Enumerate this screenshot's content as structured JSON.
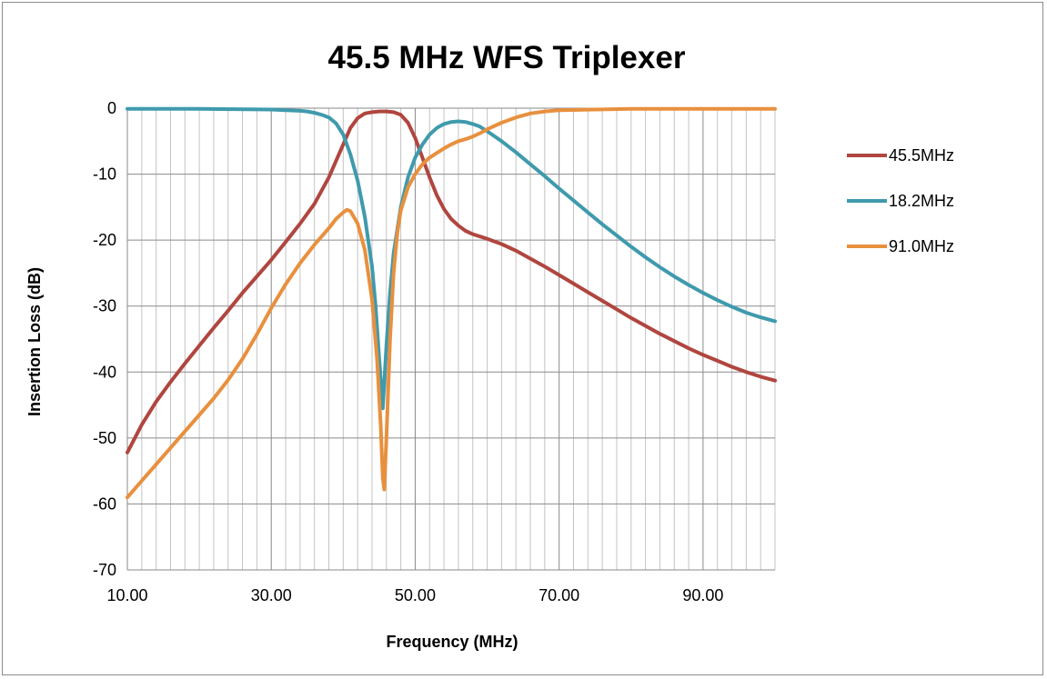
{
  "chart_data": {
    "type": "line",
    "title": "45.5 MHz WFS Triplexer",
    "xlabel": "Frequency (MHz)",
    "ylabel": "Insertion Loss (dB)",
    "xlim": [
      10,
      100
    ],
    "ylim": [
      -70,
      0
    ],
    "x_ticks": [
      "10.00",
      "30.00",
      "50.00",
      "70.00",
      "90.00"
    ],
    "x_tick_values": [
      10,
      30,
      50,
      70,
      90
    ],
    "y_ticks": [
      "0",
      "-10",
      "-20",
      "-30",
      "-40",
      "-50",
      "-60",
      "-70"
    ],
    "y_tick_values": [
      0,
      -10,
      -20,
      -30,
      -40,
      -50,
      -60,
      -70
    ],
    "x_minor_grid_step": 2,
    "grid": true,
    "legend_position": "right",
    "series": [
      {
        "name": "45.5MHz",
        "color": "#b0463f",
        "points": [
          [
            10,
            -52.2
          ],
          [
            12,
            -48
          ],
          [
            14,
            -44.5
          ],
          [
            16,
            -41.5
          ],
          [
            18,
            -38.7
          ],
          [
            20,
            -36
          ],
          [
            22,
            -33.3
          ],
          [
            24,
            -30.7
          ],
          [
            26,
            -28
          ],
          [
            28,
            -25.5
          ],
          [
            30,
            -23
          ],
          [
            32,
            -20.3
          ],
          [
            34,
            -17.5
          ],
          [
            36,
            -14.5
          ],
          [
            38,
            -10.5
          ],
          [
            39,
            -8
          ],
          [
            40,
            -5.5
          ],
          [
            41,
            -3
          ],
          [
            42,
            -1.5
          ],
          [
            43,
            -0.8
          ],
          [
            44,
            -0.6
          ],
          [
            45,
            -0.5
          ],
          [
            46,
            -0.5
          ],
          [
            47,
            -0.6
          ],
          [
            48,
            -1
          ],
          [
            49,
            -2.2
          ],
          [
            50,
            -4.5
          ],
          [
            51,
            -7.5
          ],
          [
            52,
            -10.5
          ],
          [
            53,
            -13.2
          ],
          [
            54,
            -15.3
          ],
          [
            55,
            -16.8
          ],
          [
            56,
            -17.8
          ],
          [
            57,
            -18.6
          ],
          [
            58,
            -19.1
          ],
          [
            60,
            -19.8
          ],
          [
            62,
            -20.6
          ],
          [
            64,
            -21.6
          ],
          [
            66,
            -22.8
          ],
          [
            68,
            -24
          ],
          [
            70,
            -25.3
          ],
          [
            72,
            -26.6
          ],
          [
            74,
            -27.9
          ],
          [
            76,
            -29.2
          ],
          [
            78,
            -30.5
          ],
          [
            80,
            -31.8
          ],
          [
            82,
            -33
          ],
          [
            84,
            -34.2
          ],
          [
            86,
            -35.3
          ],
          [
            88,
            -36.4
          ],
          [
            90,
            -37.4
          ],
          [
            92,
            -38.3
          ],
          [
            94,
            -39.2
          ],
          [
            96,
            -40
          ],
          [
            98,
            -40.7
          ],
          [
            100,
            -41.3
          ]
        ]
      },
      {
        "name": "18.2MHz",
        "color": "#3f9aad",
        "points": [
          [
            10,
            -0.1
          ],
          [
            15,
            -0.1
          ],
          [
            20,
            -0.1
          ],
          [
            25,
            -0.15
          ],
          [
            30,
            -0.2
          ],
          [
            32,
            -0.3
          ],
          [
            34,
            -0.4
          ],
          [
            35,
            -0.5
          ],
          [
            36,
            -0.7
          ],
          [
            37,
            -1
          ],
          [
            38,
            -1.4
          ],
          [
            39,
            -2.3
          ],
          [
            40,
            -4
          ],
          [
            41,
            -7
          ],
          [
            42,
            -11
          ],
          [
            43,
            -16.5
          ],
          [
            44,
            -24
          ],
          [
            44.5,
            -30
          ],
          [
            45,
            -38
          ],
          [
            45.5,
            -45.5
          ],
          [
            46,
            -36
          ],
          [
            46.5,
            -28
          ],
          [
            47,
            -22
          ],
          [
            48,
            -15
          ],
          [
            49,
            -10.5
          ],
          [
            50,
            -7.5
          ],
          [
            51,
            -5.5
          ],
          [
            52,
            -4
          ],
          [
            53,
            -3
          ],
          [
            54,
            -2.4
          ],
          [
            55,
            -2.1
          ],
          [
            56,
            -2
          ],
          [
            57,
            -2.1
          ],
          [
            58,
            -2.4
          ],
          [
            59,
            -2.8
          ],
          [
            60,
            -3.5
          ],
          [
            62,
            -5
          ],
          [
            64,
            -6.7
          ],
          [
            66,
            -8.5
          ],
          [
            68,
            -10.3
          ],
          [
            70,
            -12.2
          ],
          [
            72,
            -14
          ],
          [
            74,
            -15.8
          ],
          [
            76,
            -17.6
          ],
          [
            78,
            -19.3
          ],
          [
            80,
            -21
          ],
          [
            82,
            -22.6
          ],
          [
            84,
            -24.1
          ],
          [
            86,
            -25.5
          ],
          [
            88,
            -26.8
          ],
          [
            90,
            -28
          ],
          [
            92,
            -29.1
          ],
          [
            94,
            -30.1
          ],
          [
            96,
            -31
          ],
          [
            98,
            -31.7
          ],
          [
            100,
            -32.3
          ]
        ]
      },
      {
        "name": "91.0MHz",
        "color": "#e8903e",
        "points": [
          [
            10,
            -59
          ],
          [
            12,
            -56.5
          ],
          [
            14,
            -54
          ],
          [
            16,
            -51.5
          ],
          [
            18,
            -49
          ],
          [
            20,
            -46.5
          ],
          [
            22,
            -44
          ],
          [
            24,
            -41.2
          ],
          [
            26,
            -38
          ],
          [
            28,
            -34.3
          ],
          [
            30,
            -30.3
          ],
          [
            32,
            -26.7
          ],
          [
            34,
            -23.5
          ],
          [
            36,
            -20.7
          ],
          [
            38,
            -18.2
          ],
          [
            39,
            -16.8
          ],
          [
            40,
            -15.8
          ],
          [
            40.5,
            -15.4
          ],
          [
            41,
            -15.6
          ],
          [
            42,
            -17.5
          ],
          [
            43,
            -21.5
          ],
          [
            44,
            -29
          ],
          [
            44.7,
            -38
          ],
          [
            45.2,
            -48
          ],
          [
            45.5,
            -56
          ],
          [
            45.7,
            -57.8
          ],
          [
            46,
            -50
          ],
          [
            46.5,
            -35
          ],
          [
            47,
            -25
          ],
          [
            47.5,
            -19
          ],
          [
            48,
            -15.5
          ],
          [
            49,
            -12
          ],
          [
            50,
            -10
          ],
          [
            51,
            -8.5
          ],
          [
            52,
            -7.5
          ],
          [
            53,
            -6.8
          ],
          [
            54,
            -6.1
          ],
          [
            55,
            -5.5
          ],
          [
            56,
            -5
          ],
          [
            57,
            -4.7
          ],
          [
            58,
            -4.3
          ],
          [
            59,
            -3.8
          ],
          [
            60,
            -3.2
          ],
          [
            62,
            -2.2
          ],
          [
            64,
            -1.4
          ],
          [
            66,
            -0.8
          ],
          [
            68,
            -0.5
          ],
          [
            70,
            -0.3
          ],
          [
            75,
            -0.2
          ],
          [
            80,
            -0.1
          ],
          [
            90,
            -0.1
          ],
          [
            100,
            -0.1
          ]
        ]
      }
    ]
  }
}
